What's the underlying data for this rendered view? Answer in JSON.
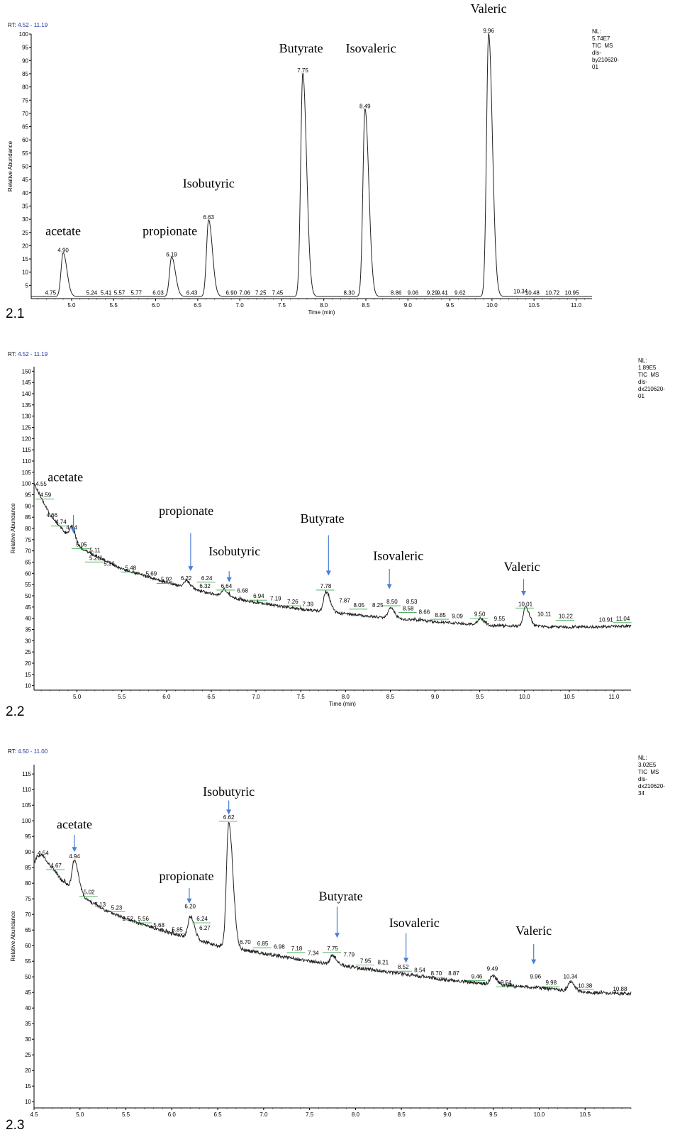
{
  "chart_data": [
    {
      "type": "line",
      "panel_label": "2.1",
      "rt_label": "RT:",
      "rt_range": "4.52 - 11.19",
      "info_lines": [
        "NL:",
        "5.74E7",
        "TIC  MS",
        "dls-",
        "by210620-",
        "01"
      ],
      "xlabel": "Time (min)",
      "ylabel": "Relative Abundance",
      "xlim": [
        4.52,
        11.19
      ],
      "ylim": [
        0,
        100
      ],
      "xticks": [
        "5.0",
        "5.5",
        "6.0",
        "6.5",
        "7.0",
        "7.5",
        "8.0",
        "8.5",
        "9.0",
        "9.5",
        "10.0",
        "10.5",
        "11.0"
      ],
      "yticks": [
        "5",
        "10",
        "15",
        "20",
        "25",
        "30",
        "35",
        "40",
        "45",
        "50",
        "55",
        "60",
        "65",
        "70",
        "75",
        "80",
        "85",
        "90",
        "95",
        "100"
      ],
      "baseline": 0.8,
      "noise": 0,
      "peaks": [
        {
          "rt": 4.9,
          "height": 16.5
        },
        {
          "rt": 6.19,
          "height": 15.0
        },
        {
          "rt": 6.63,
          "height": 29.0
        },
        {
          "rt": 7.75,
          "height": 84.5
        },
        {
          "rt": 8.49,
          "height": 71.0
        },
        {
          "rt": 9.96,
          "height": 99.5
        }
      ],
      "peak_labels": [
        {
          "text": "4.75",
          "x": 4.75,
          "y": 1.5
        },
        {
          "text": "4.90",
          "x": 4.9,
          "y": 17.5
        },
        {
          "text": "5.24",
          "x": 5.24,
          "y": 1.5
        },
        {
          "text": "5.41",
          "x": 5.41,
          "y": 1.5
        },
        {
          "text": "5.57",
          "x": 5.57,
          "y": 1.5
        },
        {
          "text": "5.77",
          "x": 5.77,
          "y": 1.5
        },
        {
          "text": "6.03",
          "x": 6.03,
          "y": 1.5
        },
        {
          "text": "6.19",
          "x": 6.19,
          "y": 16
        },
        {
          "text": "6.43",
          "x": 6.43,
          "y": 1.5
        },
        {
          "text": "6.63",
          "x": 6.63,
          "y": 30
        },
        {
          "text": "6.90",
          "x": 6.9,
          "y": 1.5
        },
        {
          "text": "7.06",
          "x": 7.06,
          "y": 1.5
        },
        {
          "text": "7.25",
          "x": 7.25,
          "y": 1.5
        },
        {
          "text": "7.45",
          "x": 7.45,
          "y": 1.5
        },
        {
          "text": "7.75",
          "x": 7.75,
          "y": 85.5
        },
        {
          "text": "8.30",
          "x": 8.3,
          "y": 1.5
        },
        {
          "text": "8.49",
          "x": 8.49,
          "y": 72
        },
        {
          "text": "8.86",
          "x": 8.86,
          "y": 1.5
        },
        {
          "text": "9.06",
          "x": 9.06,
          "y": 1.5
        },
        {
          "text": "9.29",
          "x": 9.29,
          "y": 1.5
        },
        {
          "text": "9.41",
          "x": 9.41,
          "y": 1.5
        },
        {
          "text": "9.62",
          "x": 9.62,
          "y": 1.5
        },
        {
          "text": "9.96",
          "x": 9.96,
          "y": 100.5
        },
        {
          "text": "10.34",
          "x": 10.34,
          "y": 2
        },
        {
          "text": "10.48",
          "x": 10.48,
          "y": 1.5
        },
        {
          "text": "10.72",
          "x": 10.72,
          "y": 1.5
        },
        {
          "text": "10.95",
          "x": 10.95,
          "y": 1.5
        }
      ],
      "annotations": [
        {
          "text": "acetate",
          "x": 4.9,
          "y": 24
        },
        {
          "text": "propionate",
          "x": 6.17,
          "y": 24
        },
        {
          "text": "Isobutyric",
          "x": 6.63,
          "y": 42
        },
        {
          "text": "Butyrate",
          "x": 7.73,
          "y": 93
        },
        {
          "text": "Isovaleric",
          "x": 8.56,
          "y": 93
        },
        {
          "text": "Valeric",
          "x": 9.96,
          "y": 108
        }
      ],
      "arrows": []
    },
    {
      "type": "line",
      "panel_label": "2.2",
      "rt_label": "RT:",
      "rt_range": "4.52 - 11.19",
      "info_lines": [
        "NL:",
        "1.89E5",
        "TIC  MS",
        "dls-",
        "dx210620-",
        "01"
      ],
      "xlabel": "Time (min)",
      "ylabel": "Relative Abundance",
      "xlim": [
        4.52,
        11.19
      ],
      "ylim": [
        8,
        152
      ],
      "xticks": [
        "5.0",
        "5.5",
        "6.0",
        "6.5",
        "7.0",
        "7.5",
        "8.0",
        "8.5",
        "9.0",
        "9.5",
        "10.0",
        "10.5",
        "11.0"
      ],
      "yticks": [
        "10",
        "15",
        "20",
        "25",
        "30",
        "35",
        "40",
        "45",
        "50",
        "55",
        "60",
        "65",
        "70",
        "75",
        "80",
        "85",
        "90",
        "95",
        "100",
        "105",
        "110",
        "115",
        "120",
        "125",
        "130",
        "135",
        "140",
        "145",
        "150"
      ],
      "baseline_points": [
        [
          4.52,
          100
        ],
        [
          4.7,
          86
        ],
        [
          5.0,
          72
        ],
        [
          5.5,
          62
        ],
        [
          6.0,
          56
        ],
        [
          6.5,
          51
        ],
        [
          7.0,
          47
        ],
        [
          7.5,
          44
        ],
        [
          8.0,
          42
        ],
        [
          8.5,
          40
        ],
        [
          9.0,
          38.5
        ],
        [
          9.5,
          37
        ],
        [
          10.0,
          36.5
        ],
        [
          10.5,
          36
        ],
        [
          11.19,
          36.5
        ]
      ],
      "noise": 0.6,
      "peaks": [
        {
          "rt": 4.94,
          "height": 6
        },
        {
          "rt": 6.22,
          "height": 3
        },
        {
          "rt": 6.64,
          "height": 3
        },
        {
          "rt": 7.78,
          "height": 9
        },
        {
          "rt": 8.5,
          "height": 5
        },
        {
          "rt": 9.5,
          "height": 3
        },
        {
          "rt": 10.01,
          "height": 8.5
        }
      ],
      "peak_labels": [
        {
          "text": "4.55",
          "x": 4.6,
          "y": 99
        },
        {
          "text": "4.59",
          "x": 4.65,
          "y": 94
        },
        {
          "text": "4.66",
          "x": 4.72,
          "y": 85
        },
        {
          "text": "4.74",
          "x": 4.82,
          "y": 82
        },
        {
          "text": "4.94",
          "x": 4.94,
          "y": 79.5
        },
        {
          "text": "5.05",
          "x": 5.05,
          "y": 72
        },
        {
          "text": "5.11",
          "x": 5.2,
          "y": 69.5
        },
        {
          "text": "5.21",
          "x": 5.2,
          "y": 66
        },
        {
          "text": "5.36",
          "x": 5.36,
          "y": 63.5
        },
        {
          "text": "5.48",
          "x": 5.6,
          "y": 61.5
        },
        {
          "text": "5.69",
          "x": 5.83,
          "y": 59
        },
        {
          "text": "5.92",
          "x": 6.0,
          "y": 56.5
        },
        {
          "text": "6.22",
          "x": 6.22,
          "y": 57
        },
        {
          "text": "6.24",
          "x": 6.45,
          "y": 57
        },
        {
          "text": "6.32",
          "x": 6.43,
          "y": 53.5
        },
        {
          "text": "6.64",
          "x": 6.67,
          "y": 53.5
        },
        {
          "text": "6.68",
          "x": 6.85,
          "y": 51.5
        },
        {
          "text": "6.94",
          "x": 7.03,
          "y": 49
        },
        {
          "text": "7.19",
          "x": 7.22,
          "y": 48
        },
        {
          "text": "7.26",
          "x": 7.41,
          "y": 46.5
        },
        {
          "text": "7.39",
          "x": 7.58,
          "y": 45.5
        },
        {
          "text": "7.78",
          "x": 7.78,
          "y": 53.5
        },
        {
          "text": "7.87",
          "x": 7.99,
          "y": 47
        },
        {
          "text": "8.05",
          "x": 8.15,
          "y": 45
        },
        {
          "text": "8.25",
          "x": 8.36,
          "y": 45
        },
        {
          "text": "8.50",
          "x": 8.52,
          "y": 46.5
        },
        {
          "text": "8.53",
          "x": 8.74,
          "y": 46.5
        },
        {
          "text": "8.58",
          "x": 8.7,
          "y": 43.5
        },
        {
          "text": "8.66",
          "x": 8.88,
          "y": 42
        },
        {
          "text": "8.85",
          "x": 9.06,
          "y": 40.5
        },
        {
          "text": "9.09",
          "x": 9.25,
          "y": 40
        },
        {
          "text": "9.50",
          "x": 9.5,
          "y": 41
        },
        {
          "text": "9.55",
          "x": 9.72,
          "y": 39
        },
        {
          "text": "10.01",
          "x": 10.01,
          "y": 45.5
        },
        {
          "text": "10.11",
          "x": 10.22,
          "y": 41
        },
        {
          "text": "10.22",
          "x": 10.46,
          "y": 40
        },
        {
          "text": "10.91",
          "x": 10.91,
          "y": 38.5
        },
        {
          "text": "11.04",
          "x": 11.1,
          "y": 39
        }
      ],
      "annotations": [
        {
          "text": "acetate",
          "x": 4.87,
          "y": 101
        },
        {
          "text": "propionate",
          "x": 6.22,
          "y": 86
        },
        {
          "text": "Isobutyric",
          "x": 6.76,
          "y": 68
        },
        {
          "text": "Butyrate",
          "x": 7.74,
          "y": 82.5
        },
        {
          "text": "Isovaleric",
          "x": 8.59,
          "y": 66
        },
        {
          "text": "Valeric",
          "x": 9.97,
          "y": 61
        }
      ],
      "arrows": [
        {
          "x": 4.96,
          "y_from": 86,
          "y_to": 78
        },
        {
          "x": 6.27,
          "y_from": 78,
          "y_to": 61
        },
        {
          "x": 6.7,
          "y_from": 61,
          "y_to": 56
        },
        {
          "x": 7.81,
          "y_from": 77,
          "y_to": 59
        },
        {
          "x": 8.49,
          "y_from": 62,
          "y_to": 53
        },
        {
          "x": 9.99,
          "y_from": 57.5,
          "y_to": 50
        }
      ]
    },
    {
      "type": "line",
      "panel_label": "2.3",
      "rt_label": "RT:",
      "rt_range": "4.50 - 11.00",
      "info_lines": [
        "NL:",
        "3.02E5",
        "TIC  MS",
        "dls-",
        "dx210620-",
        "34"
      ],
      "xlabel": "",
      "ylabel": "Relative Abundance",
      "xlim": [
        4.5,
        11.0
      ],
      "ylim": [
        8,
        118
      ],
      "xticks": [
        "4.5",
        "5.0",
        "5.5",
        "6.0",
        "6.5",
        "7.0",
        "7.5",
        "8.0",
        "8.5",
        "9.0",
        "9.5",
        "10.0",
        "10.5"
      ],
      "yticks": [
        "10",
        "15",
        "20",
        "25",
        "30",
        "35",
        "40",
        "45",
        "50",
        "55",
        "60",
        "65",
        "70",
        "75",
        "80",
        "85",
        "90",
        "95",
        "100",
        "105",
        "110",
        "115"
      ],
      "baseline_points": [
        [
          4.5,
          86
        ],
        [
          4.6,
          88
        ],
        [
          4.7,
          85
        ],
        [
          4.8,
          81
        ],
        [
          5.0,
          76
        ],
        [
          5.3,
          71
        ],
        [
          5.6,
          67.5
        ],
        [
          6.0,
          64
        ],
        [
          6.5,
          60
        ],
        [
          7.0,
          57.5
        ],
        [
          7.5,
          55
        ],
        [
          8.0,
          53
        ],
        [
          8.5,
          51
        ],
        [
          9.0,
          49
        ],
        [
          9.5,
          47.5
        ],
        [
          10.0,
          46.5
        ],
        [
          10.5,
          45
        ],
        [
          11.0,
          44.5
        ]
      ],
      "noise": 0.55,
      "peaks": [
        {
          "rt": 4.54,
          "height": 2
        },
        {
          "rt": 4.94,
          "height": 10
        },
        {
          "rt": 6.2,
          "height": 7
        },
        {
          "rt": 6.62,
          "height": 40
        },
        {
          "rt": 7.75,
          "height": 3
        },
        {
          "rt": 9.49,
          "height": 3
        },
        {
          "rt": 10.34,
          "height": 3
        }
      ],
      "peak_labels": [
        {
          "text": "4.54",
          "x": 4.6,
          "y": 89
        },
        {
          "text": "4.67",
          "x": 4.74,
          "y": 85
        },
        {
          "text": "4.94",
          "x": 4.94,
          "y": 88
        },
        {
          "text": "5.02",
          "x": 5.1,
          "y": 76.5
        },
        {
          "text": "5.13",
          "x": 5.22,
          "y": 72.5
        },
        {
          "text": "5.23",
          "x": 5.4,
          "y": 71.5
        },
        {
          "text": "5.52",
          "x": 5.52,
          "y": 68
        },
        {
          "text": "5.56",
          "x": 5.69,
          "y": 68
        },
        {
          "text": "5.68",
          "x": 5.86,
          "y": 66
        },
        {
          "text": "5.85",
          "x": 6.06,
          "y": 64.5
        },
        {
          "text": "6.20",
          "x": 6.2,
          "y": 72
        },
        {
          "text": "6.24",
          "x": 6.33,
          "y": 68
        },
        {
          "text": "6.27",
          "x": 6.36,
          "y": 65
        },
        {
          "text": "6.62",
          "x": 6.62,
          "y": 100.5
        },
        {
          "text": "6.70",
          "x": 6.8,
          "y": 60.5
        },
        {
          "text": "6.85",
          "x": 6.99,
          "y": 60
        },
        {
          "text": "6.98",
          "x": 7.17,
          "y": 59
        },
        {
          "text": "7.18",
          "x": 7.36,
          "y": 58.5
        },
        {
          "text": "7.34",
          "x": 7.54,
          "y": 57
        },
        {
          "text": "7.75",
          "x": 7.75,
          "y": 58.5
        },
        {
          "text": "7.79",
          "x": 7.93,
          "y": 56.5
        },
        {
          "text": "7.95",
          "x": 8.11,
          "y": 54.5
        },
        {
          "text": "8.21",
          "x": 8.3,
          "y": 54
        },
        {
          "text": "8.52",
          "x": 8.52,
          "y": 52.5
        },
        {
          "text": "8.54",
          "x": 8.7,
          "y": 51.5
        },
        {
          "text": "8.70",
          "x": 8.88,
          "y": 50.5
        },
        {
          "text": "8.87",
          "x": 9.07,
          "y": 50.5
        },
        {
          "text": "9.46",
          "x": 9.32,
          "y": 49.5
        },
        {
          "text": "9.49",
          "x": 9.49,
          "y": 52
        },
        {
          "text": "9.54",
          "x": 9.64,
          "y": 47.5
        },
        {
          "text": "9.96",
          "x": 9.96,
          "y": 49.5
        },
        {
          "text": "9.98",
          "x": 10.13,
          "y": 47.5
        },
        {
          "text": "10.34",
          "x": 10.34,
          "y": 49.5
        },
        {
          "text": "10.38",
          "x": 10.5,
          "y": 46.5
        },
        {
          "text": "10.88",
          "x": 10.88,
          "y": 45.5
        }
      ],
      "annotations": [
        {
          "text": "acetate",
          "x": 4.94,
          "y": 97.5
        },
        {
          "text": "propionate",
          "x": 6.16,
          "y": 81
        },
        {
          "text": "Isobutyric",
          "x": 6.62,
          "y": 108
        },
        {
          "text": "Butyrate",
          "x": 7.84,
          "y": 74.5
        },
        {
          "text": "Isovaleric",
          "x": 8.64,
          "y": 66
        },
        {
          "text": "Valeric",
          "x": 9.94,
          "y": 63.5
        }
      ],
      "arrows": [
        {
          "x": 4.94,
          "y_from": 95.5,
          "y_to": 90
        },
        {
          "x": 6.19,
          "y_from": 78.5,
          "y_to": 73.5
        },
        {
          "x": 6.62,
          "y_from": 106.5,
          "y_to": 102
        },
        {
          "x": 7.8,
          "y_from": 72.5,
          "y_to": 62.5
        },
        {
          "x": 8.55,
          "y_from": 64,
          "y_to": 54.5
        },
        {
          "x": 9.94,
          "y_from": 60.5,
          "y_to": 54
        }
      ]
    }
  ]
}
